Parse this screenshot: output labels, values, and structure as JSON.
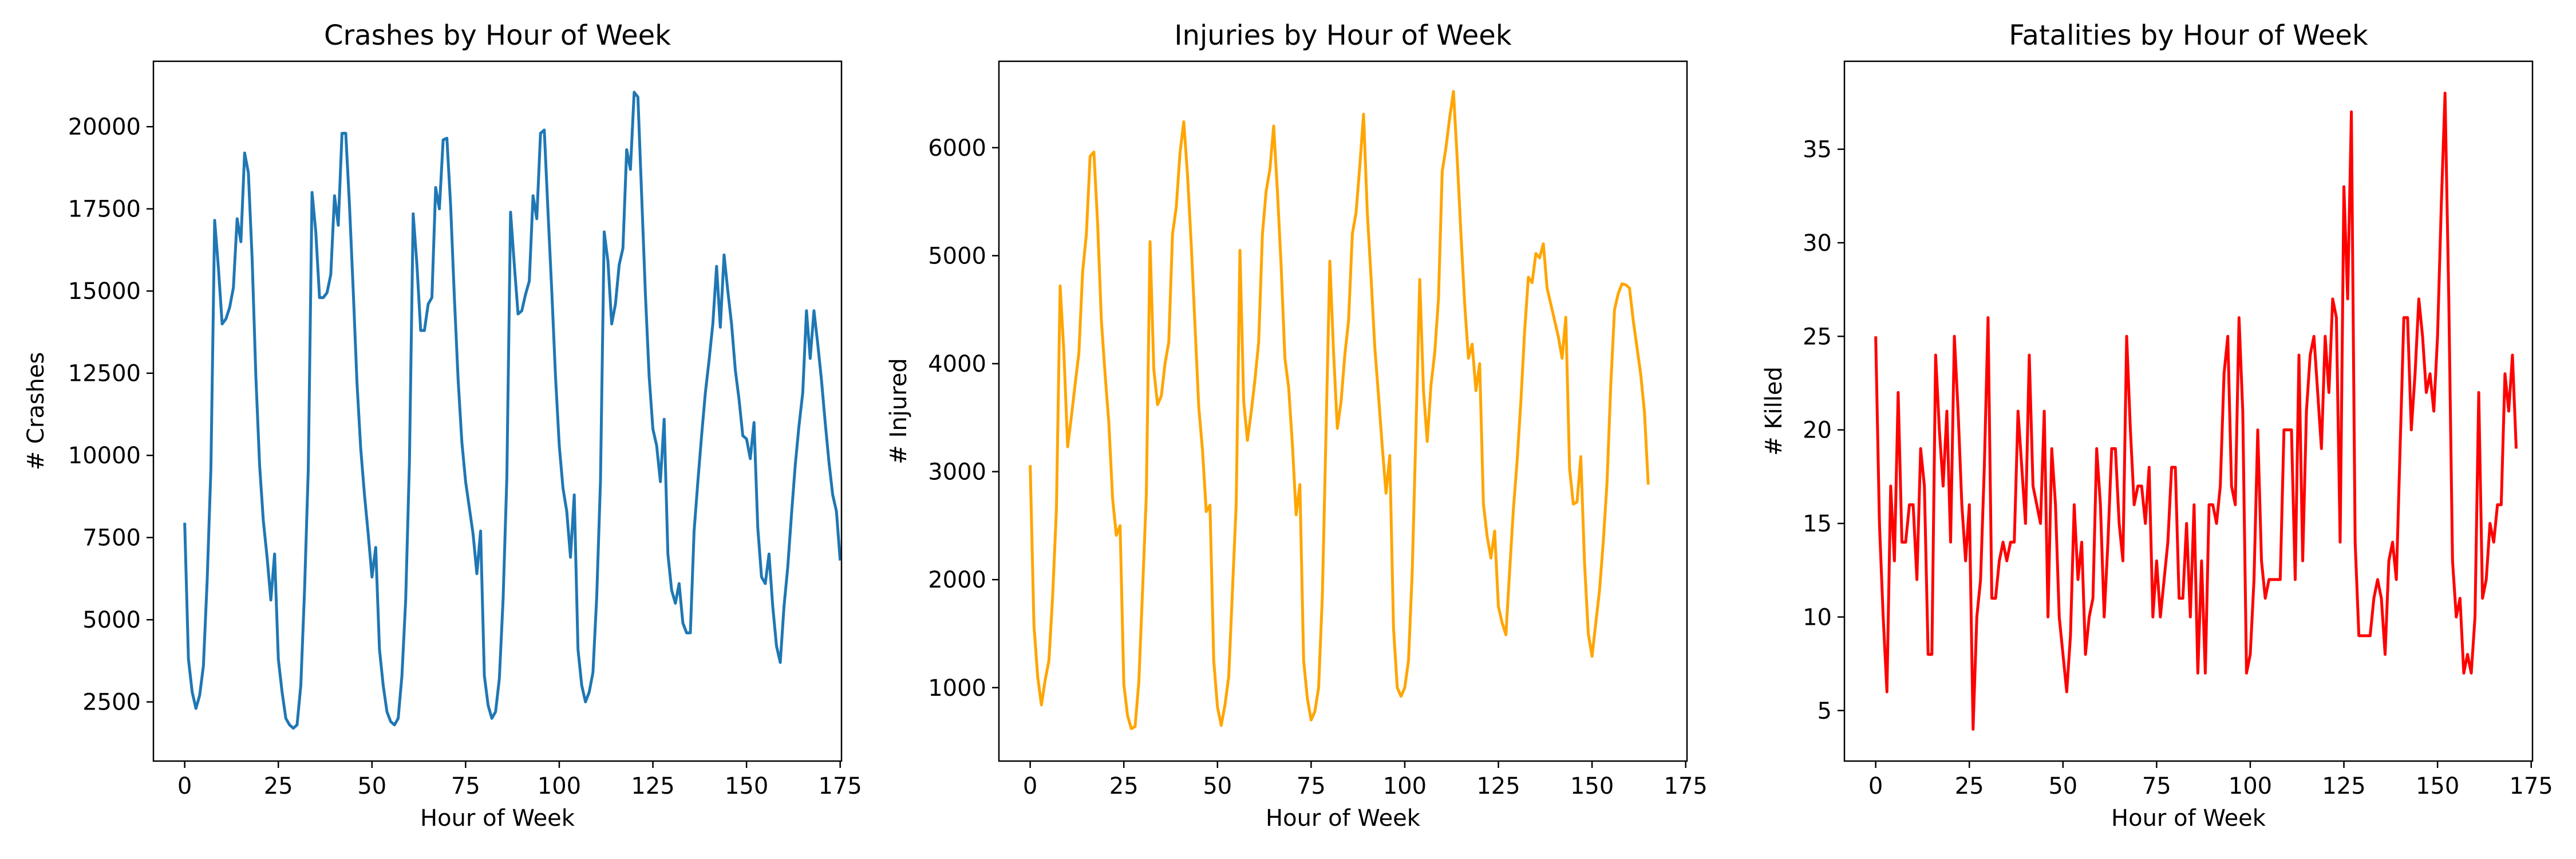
{
  "chart_data": [
    {
      "type": "line",
      "title": "Crashes by Hour of Week",
      "xlabel": "Hour of Week",
      "ylabel": "# Crashes",
      "xlim": [
        -8.35,
        175.35
      ],
      "ylim": [
        700,
        21990
      ],
      "xticks": [
        0,
        25,
        50,
        75,
        100,
        125,
        150,
        175
      ],
      "yticks": [
        2500,
        5000,
        7500,
        10000,
        12500,
        15000,
        17500,
        20000
      ],
      "xtick_labels": [
        "0",
        "25",
        "50",
        "75",
        "100",
        "125",
        "150",
        "175"
      ],
      "ytick_labels": [
        "2500",
        "5000",
        "7500",
        "10000",
        "12500",
        "15000",
        "17500",
        "20000"
      ],
      "grid": false,
      "series": [
        {
          "color": "#1f77b4",
          "y": [
            7950,
            3800,
            2800,
            2300,
            2700,
            3600,
            6200,
            9600,
            17150,
            15700,
            14000,
            14150,
            14500,
            15100,
            17200,
            16500,
            19200,
            18600,
            16000,
            12400,
            9700,
            8000,
            6900,
            5600,
            7000,
            3800,
            2800,
            2000,
            1800,
            1700,
            1800,
            3000,
            5900,
            9600,
            18000,
            16800,
            14800,
            14800,
            14950,
            15500,
            17900,
            17000,
            19800,
            19800,
            17600,
            15000,
            12200,
            10200,
            8800,
            7600,
            6300,
            7200,
            4100,
            3000,
            2200,
            1900,
            1800,
            2000,
            3300,
            5600,
            9800,
            17350,
            15800,
            13800,
            13800,
            14600,
            14800,
            18150,
            17500,
            19600,
            19650,
            17600,
            14800,
            12300,
            10400,
            9200,
            8400,
            7600,
            6400,
            7700,
            3300,
            2400,
            2000,
            2200,
            3200,
            5600,
            9300,
            17400,
            15800,
            14300,
            14400,
            14900,
            15300,
            17900,
            17200,
            19800,
            19900,
            17400,
            15000,
            12400,
            10300,
            9000,
            8300,
            6900,
            8800,
            4100,
            3000,
            2500,
            2800,
            3400,
            5700,
            9200,
            16800,
            15900,
            14000,
            14600,
            15800,
            16300,
            19300,
            18700,
            21050,
            20900,
            17900,
            14900,
            12400,
            10800,
            10300,
            9200,
            11100,
            7000,
            5900,
            5500,
            6100,
            4900,
            4600,
            4600,
            7700,
            9200,
            10600,
            11900,
            12900,
            14000,
            15750,
            13900,
            16100,
            15000,
            14000,
            12600,
            11700,
            10600,
            10500,
            9900,
            11000,
            7800,
            6300,
            6100,
            7000,
            5400,
            4200,
            3700,
            5400,
            6600,
            8200,
            9700,
            10900,
            11900,
            14400,
            12950,
            14400,
            13400,
            12300,
            11000,
            9800,
            8800,
            8300,
            6800
          ]
        }
      ]
    },
    {
      "type": "line",
      "title": "Injuries by Hour of Week",
      "xlabel": "Hour of Week",
      "ylabel": "# Injured",
      "xlim": [
        -8.35,
        175.35
      ],
      "ylim": [
        320,
        6800
      ],
      "xticks": [
        0,
        25,
        50,
        75,
        100,
        125,
        150,
        175
      ],
      "yticks": [
        1000,
        2000,
        3000,
        4000,
        5000,
        6000
      ],
      "xtick_labels": [
        "0",
        "25",
        "50",
        "75",
        "100",
        "125",
        "150",
        "175"
      ],
      "ytick_labels": [
        "1000",
        "2000",
        "3000",
        "4000",
        "5000",
        "6000"
      ],
      "grid": false,
      "series": [
        {
          "color": "#ffa500",
          "y": [
            3060,
            1580,
            1100,
            840,
            1070,
            1250,
            1850,
            2650,
            4720,
            4100,
            3230,
            3510,
            3810,
            4100,
            4850,
            5200,
            5920,
            5960,
            5300,
            4400,
            3900,
            3450,
            2750,
            2410,
            2500,
            1030,
            740,
            620,
            640,
            1050,
            1900,
            2780,
            5130,
            3950,
            3620,
            3700,
            4000,
            4200,
            5200,
            5450,
            5950,
            6240,
            5750,
            5100,
            4350,
            3600,
            3200,
            2630,
            2690,
            1250,
            820,
            650,
            840,
            1100,
            1900,
            2700,
            5050,
            3650,
            3290,
            3550,
            3850,
            4200,
            5200,
            5600,
            5800,
            6200,
            5600,
            4900,
            4050,
            3780,
            3250,
            2600,
            2880,
            1250,
            900,
            700,
            780,
            1000,
            1850,
            3400,
            4950,
            4100,
            3400,
            3650,
            4080,
            4400,
            5200,
            5400,
            5830,
            6310,
            5400,
            4800,
            4150,
            3700,
            3230,
            2800,
            3150,
            1550,
            1000,
            920,
            1000,
            1250,
            2080,
            3400,
            4780,
            3750,
            3280,
            3800,
            4100,
            4600,
            5780,
            6000,
            6280,
            6520,
            5900,
            5200,
            4550,
            4050,
            4180,
            3750,
            4000,
            2700,
            2400,
            2200,
            2450,
            1750,
            1600,
            1490,
            2080,
            2650,
            3100,
            3650,
            4300,
            4800,
            4750,
            5020,
            4980,
            5110,
            4700,
            4550,
            4400,
            4250,
            4050,
            4430,
            3030,
            2700,
            2720,
            3140,
            2150,
            1500,
            1290,
            1600,
            1900,
            2350,
            2900,
            3800,
            4500,
            4650,
            4740,
            4730,
            4700,
            4400,
            4150,
            3900,
            3550,
            2880
          ]
        }
      ]
    },
    {
      "type": "line",
      "title": "Fatalities by Hour of Week",
      "xlabel": "Hour of Week",
      "ylabel": "# Killed",
      "xlim": [
        -8.35,
        175.35
      ],
      "ylim": [
        2.3,
        39.7
      ],
      "xticks": [
        0,
        25,
        50,
        75,
        100,
        125,
        150,
        175
      ],
      "yticks": [
        5,
        10,
        15,
        20,
        25,
        30,
        35
      ],
      "xtick_labels": [
        "0",
        "25",
        "50",
        "75",
        "100",
        "125",
        "150",
        "175"
      ],
      "ytick_labels": [
        "5",
        "10",
        "15",
        "20",
        "25",
        "30",
        "35"
      ],
      "grid": false,
      "series": [
        {
          "color": "#ff0000",
          "y": [
            25,
            15,
            10,
            6,
            17,
            13,
            22,
            14,
            14,
            16,
            16,
            12,
            19,
            17,
            8,
            8,
            24,
            20,
            17,
            21,
            14,
            25,
            21,
            16,
            13,
            16,
            4,
            10,
            12,
            18,
            26,
            11,
            11,
            13,
            14,
            13,
            14,
            14,
            21,
            18,
            15,
            24,
            17,
            16,
            15,
            21,
            10,
            19,
            16,
            10,
            8,
            6,
            9,
            16,
            12,
            14,
            8,
            10,
            11,
            19,
            16,
            10,
            14,
            19,
            19,
            15,
            13,
            25,
            20,
            16,
            17,
            17,
            15,
            18,
            10,
            13,
            10,
            12,
            14,
            18,
            18,
            11,
            11,
            15,
            10,
            16,
            7,
            13,
            7,
            16,
            16,
            15,
            17,
            23,
            25,
            17,
            16,
            26,
            21,
            7,
            8,
            12,
            20,
            13,
            11,
            12,
            12,
            12,
            12,
            20,
            20,
            20,
            12,
            24,
            13,
            21,
            24,
            25,
            22,
            19,
            25,
            22,
            27,
            26,
            14,
            33,
            27,
            37,
            14,
            9,
            9,
            9,
            9,
            11,
            12,
            11,
            8,
            13,
            14,
            12,
            19,
            26,
            26,
            20,
            23,
            27,
            25,
            22,
            23,
            21,
            25,
            32,
            38,
            27,
            13,
            10,
            11,
            7,
            8,
            7,
            10,
            22,
            11,
            12,
            15,
            14,
            16,
            16,
            23,
            21,
            24,
            19
          ]
        }
      ]
    }
  ]
}
